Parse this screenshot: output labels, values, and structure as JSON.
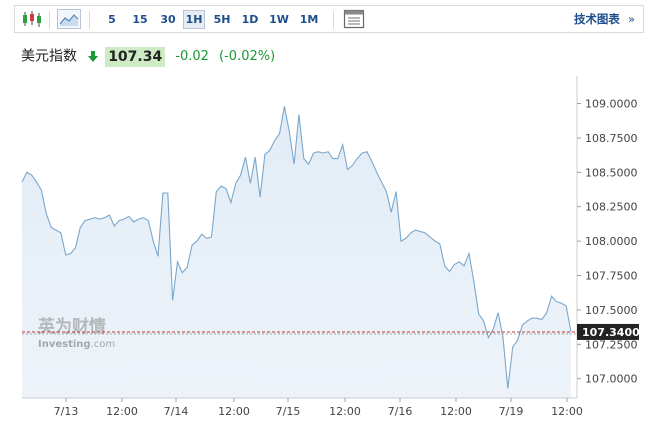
{
  "toolbar": {
    "candles_icon": "candlestick-icon",
    "area_icon": "area-chart-icon",
    "timeframes": [
      "5",
      "15",
      "30",
      "1H",
      "5H",
      "1D",
      "1W",
      "1M"
    ],
    "active_timeframe": "1H",
    "settings_icon": "chart-settings-icon",
    "tech_chart_label": "技术图表",
    "tech_chart_arrow": "»"
  },
  "quote": {
    "name": "美元指数",
    "direction_icon": "down-arrow-icon",
    "price": "107.34",
    "change": "-0.02",
    "change_pct": "(-0.02%)"
  },
  "watermark": {
    "brand_cn": "英为财情",
    "brand_en": "Investing",
    "brand_suffix": ".com"
  },
  "colors": {
    "line": "#7aa7cc",
    "fill": "#e6eff7",
    "current_line": "#c0392b",
    "current_label_bg": "#222222",
    "up_down_green": "#1a9a34",
    "link": "#1e4e8c"
  },
  "chart_data": {
    "type": "area",
    "title": "",
    "x_tick_labels": [
      "7/13",
      "12:00",
      "7/14",
      "12:00",
      "7/15",
      "12:00",
      "7/16",
      "12:00",
      "7/19",
      "12:00"
    ],
    "y_ticks": [
      "107.0000",
      "107.2500",
      "107.5000",
      "107.7500",
      "108.0000",
      "108.2500",
      "108.5000",
      "108.7500",
      "109.0000"
    ],
    "ylim": [
      106.86,
      109.2
    ],
    "current_value": 107.34,
    "current_label": "107.3400",
    "grid": false,
    "y_axis_position": "right",
    "values": [
      108.43,
      108.5,
      108.48,
      108.43,
      108.37,
      108.2,
      108.1,
      108.08,
      108.06,
      107.9,
      107.91,
      107.95,
      108.1,
      108.15,
      108.16,
      108.17,
      108.16,
      108.17,
      108.19,
      108.11,
      108.15,
      108.16,
      108.18,
      108.14,
      108.16,
      108.17,
      108.15,
      108.0,
      107.89,
      108.35,
      108.35,
      107.57,
      107.85,
      107.77,
      107.81,
      107.97,
      108.0,
      108.05,
      108.02,
      108.03,
      108.36,
      108.4,
      108.38,
      108.28,
      108.42,
      108.48,
      108.61,
      108.42,
      108.61,
      108.32,
      108.63,
      108.66,
      108.73,
      108.78,
      108.98,
      108.8,
      108.56,
      108.92,
      108.6,
      108.56,
      108.64,
      108.65,
      108.64,
      108.65,
      108.6,
      108.6,
      108.7,
      108.52,
      108.55,
      108.6,
      108.64,
      108.65,
      108.58,
      108.5,
      108.43,
      108.36,
      108.21,
      108.36,
      108.0,
      108.02,
      108.06,
      108.08,
      108.07,
      108.06,
      108.03,
      108.0,
      107.98,
      107.82,
      107.78,
      107.83,
      107.85,
      107.82,
      107.91,
      107.71,
      107.47,
      107.42,
      107.3,
      107.36,
      107.48,
      107.3,
      106.93,
      107.23,
      107.28,
      107.39,
      107.42,
      107.44,
      107.44,
      107.43,
      107.48,
      107.6,
      107.56,
      107.55,
      107.53,
      107.34
    ]
  }
}
